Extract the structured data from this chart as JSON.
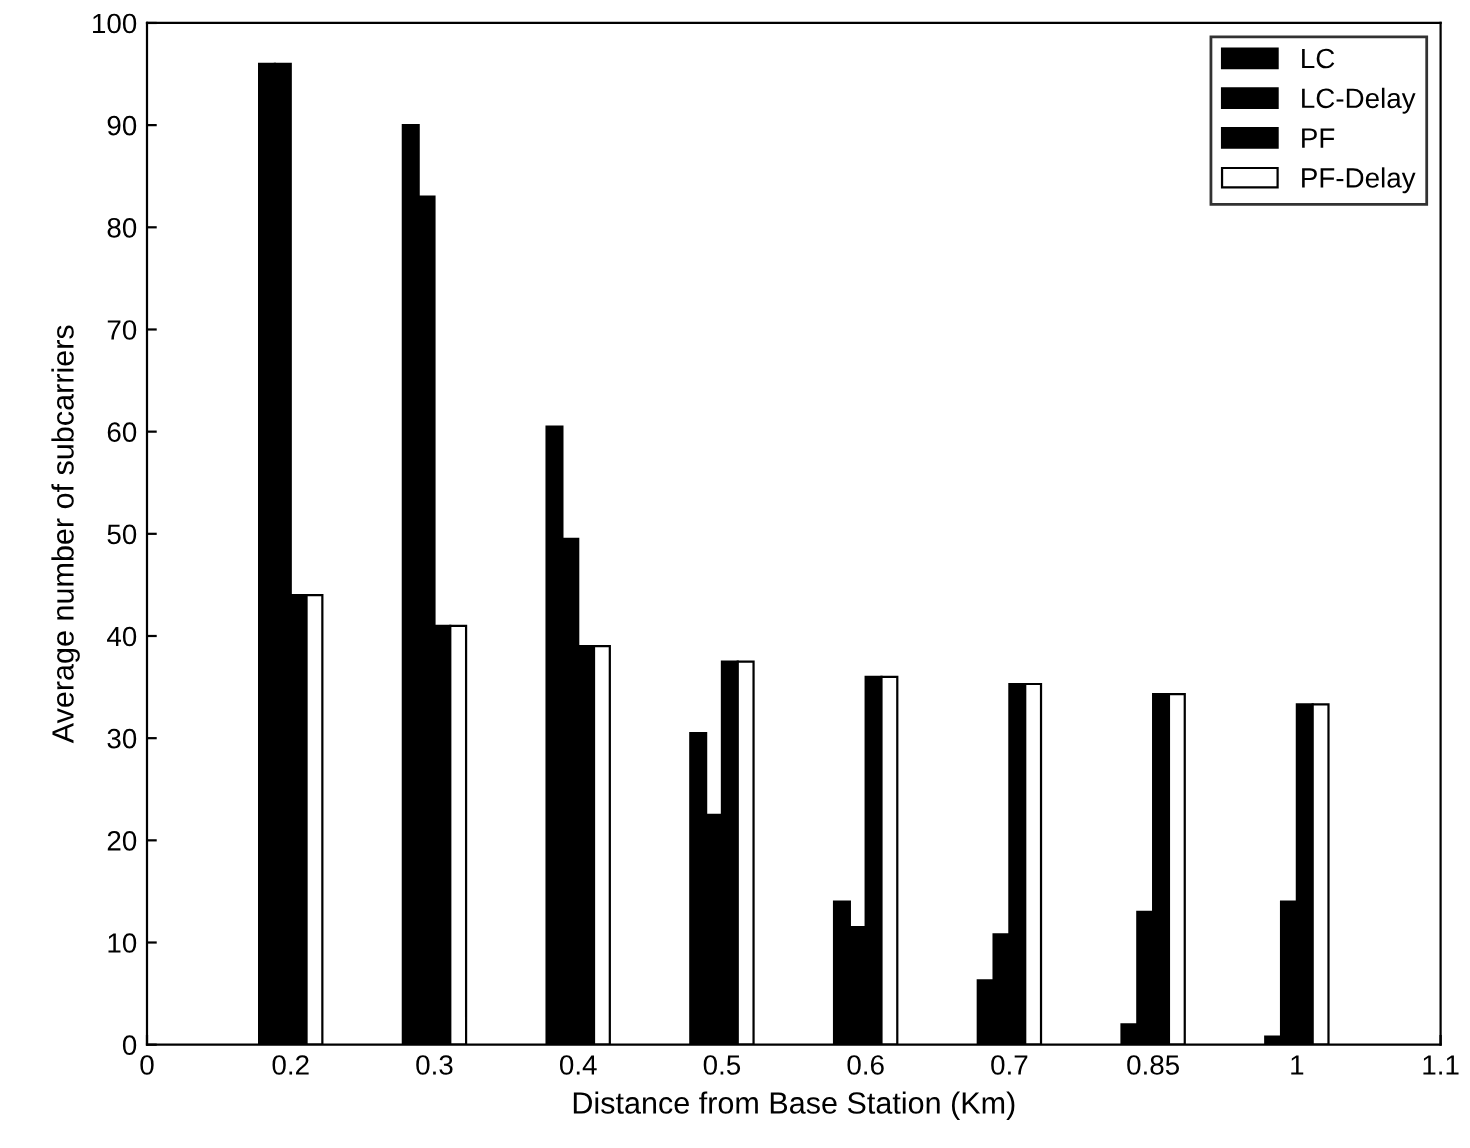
{
  "chart_data": {
    "type": "bar",
    "xlabel": "Distance from Base Station (Km)",
    "ylabel": "Average number of subcarriers",
    "categories": [
      "0",
      "0.2",
      "0.3",
      "0.4",
      "0.5",
      "0.6",
      "0.7",
      "0.85",
      "1",
      "1.1"
    ],
    "series": [
      {
        "name": "LC",
        "color": "#000000",
        "values": [
          null,
          96,
          90,
          60.5,
          30.5,
          14,
          6.3,
          2,
          0.8,
          null
        ]
      },
      {
        "name": "LC-Delay",
        "color": "#000000",
        "values": [
          null,
          96,
          83,
          49.5,
          22.5,
          11.5,
          10.8,
          13,
          14,
          null
        ]
      },
      {
        "name": "PF",
        "color": "#000000",
        "values": [
          null,
          44,
          41,
          39,
          37.5,
          36,
          35.3,
          34.3,
          33.3,
          null
        ]
      },
      {
        "name": "PF-Delay",
        "color": "#ffffff",
        "values": [
          null,
          44,
          41,
          39,
          37.5,
          36,
          35.3,
          34.3,
          33.3,
          null
        ]
      }
    ],
    "ylim": [
      0,
      100
    ],
    "yticks": [
      0,
      10,
      20,
      30,
      40,
      50,
      60,
      70,
      80,
      90,
      100
    ],
    "grid": false,
    "legend": "top right"
  }
}
